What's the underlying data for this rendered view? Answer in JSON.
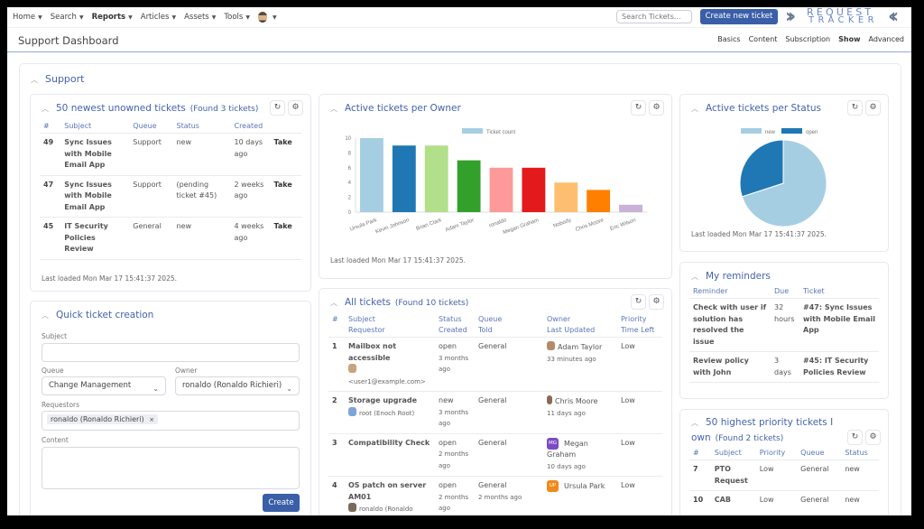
{
  "nav": {
    "menu": [
      {
        "label": "Home",
        "bold": false
      },
      {
        "label": "Search",
        "bold": false
      },
      {
        "label": "Reports",
        "bold": true
      },
      {
        "label": "Articles",
        "bold": false
      },
      {
        "label": "Assets",
        "bold": false
      },
      {
        "label": "Tools",
        "bold": false
      }
    ],
    "search_placeholder": "Search Tickets...",
    "create_button": "Create new ticket",
    "logo_line1": "REQUEST",
    "logo_line2": "TRACKER"
  },
  "page": {
    "title": "Support Dashboard",
    "submenu": [
      "Basics",
      "Content",
      "Subscription",
      "Show",
      "Advanced"
    ]
  },
  "dashboard": {
    "title": "Support"
  },
  "unowned": {
    "title": "50 newest unowned tickets",
    "found": "(Found 3 tickets)",
    "headers": [
      "#",
      "Subject",
      "Queue",
      "Status",
      "Created",
      ""
    ],
    "rows": [
      {
        "id": "49",
        "subject": "Sync Issues with Mobile Email App",
        "queue": "Support",
        "status": "new",
        "created": "10 days ago",
        "action": "Take"
      },
      {
        "id": "47",
        "subject": "Sync Issues with Mobile Email App",
        "queue": "Support",
        "status": "(pending ticket #45)",
        "created": "2 weeks ago",
        "action": "Take"
      },
      {
        "id": "45",
        "subject": "IT Security Policies Review",
        "queue": "General",
        "status": "new",
        "created": "4 weeks ago",
        "action": "Take"
      }
    ],
    "last_loaded": "Last loaded Mon Mar 17 15:41:37 2025."
  },
  "quick": {
    "title": "Quick ticket creation",
    "subject_label": "Subject",
    "subject_value": "",
    "queue_label": "Queue",
    "queue_value": "Change Management",
    "owner_label": "Owner",
    "owner_value": "ronaldo (Ronaldo Richieri)",
    "requestors_label": "Requestors",
    "requestor_tag": "ronaldo (Ronaldo Richieri)",
    "content_label": "Content",
    "content_value": "",
    "create_label": "Create"
  },
  "owner_chart": {
    "title": "Active tickets per Owner",
    "last_loaded": "Last loaded Mon Mar 17 15:41:37 2025."
  },
  "status_chart": {
    "title": "Active tickets per Status",
    "last_loaded": "Last loaded Mon Mar 17 15:41:37 2025."
  },
  "chart_data": [
    {
      "type": "bar",
      "title": "Active tickets per Owner",
      "legend": [
        "Ticket count"
      ],
      "legend_position": "top",
      "categories": [
        "Ursula Park",
        "Kevin Johnson",
        "Brian Clark",
        "Adam Taylor",
        "ronaldo",
        "Megan Graham",
        "Nobody",
        "Chris Moore",
        "Eric Wilson"
      ],
      "values": [
        10,
        9,
        9,
        7,
        6,
        6,
        4,
        3,
        1
      ],
      "colors": [
        "#a6cee3",
        "#1f78b4",
        "#b2df8a",
        "#33a02c",
        "#fb9a99",
        "#e31a1c",
        "#fdbf6f",
        "#ff7f00",
        "#cab2d6"
      ],
      "yticks": [
        0,
        2,
        4,
        6,
        8,
        10
      ],
      "ylim": [
        0,
        10
      ],
      "xlabel": "",
      "ylabel": ""
    },
    {
      "type": "pie",
      "title": "Active tickets per Status",
      "legend": [
        "new",
        "open"
      ],
      "legend_position": "top",
      "categories": [
        "new",
        "open"
      ],
      "values": [
        70,
        30
      ],
      "colors": [
        "#a6cee3",
        "#1f78b4"
      ]
    }
  ],
  "all_tickets": {
    "title": "All tickets",
    "found": "(Found 10 tickets)",
    "headers_top": [
      "#",
      "Subject",
      "Status",
      "Queue",
      "Owner",
      "Priority"
    ],
    "headers_bottom": [
      "",
      "Requestor",
      "Created",
      "Told",
      "Last Updated",
      "Time Left"
    ],
    "rows": [
      {
        "id": "1",
        "subject": "Mailbox not accessible",
        "requestor": "<user1@example.com>",
        "status": "open",
        "created": "3 months ago",
        "queue": "General",
        "told": "",
        "owner": "Adam Taylor",
        "updated": "33 minutes ago",
        "priority": "Low"
      },
      {
        "id": "2",
        "subject": "Storage upgrade",
        "requestor": "root (Enoch Root)",
        "status": "new",
        "created": "3 months ago",
        "queue": "General",
        "told": "",
        "owner": "Chris Moore",
        "updated": "11 days ago",
        "priority": "Low"
      },
      {
        "id": "3",
        "subject": "Compatibility Check",
        "requestor": "",
        "status": "open",
        "created": "2 months ago",
        "queue": "General",
        "told": "",
        "owner": "Megan Graham",
        "owner_initials": "MG",
        "updated": "10 days ago",
        "priority": "Low"
      },
      {
        "id": "4",
        "subject": "OS patch on server AM01",
        "requestor": "ronaldo (Ronaldo",
        "status": "open",
        "created": "2 months ago",
        "queue": "General",
        "told": "2 months ago",
        "owner": "Ursula Park",
        "owner_initials": "UP",
        "updated": "",
        "priority": "Low"
      }
    ]
  },
  "reminders": {
    "title": "My reminders",
    "headers": [
      "Reminder",
      "Due",
      "Ticket"
    ],
    "rows": [
      {
        "reminder": "Check with user if solution has resolved the issue",
        "due": "32 hours",
        "ticket": "#47: Sync Issues with Mobile Email App"
      },
      {
        "reminder": "Review policy with John",
        "due": "3 days",
        "ticket": "#45: IT Security Policies Review"
      }
    ]
  },
  "priority": {
    "title": "50 highest priority tickets I own",
    "found": "(Found 2 tickets)",
    "headers": [
      "#",
      "Subject",
      "Priority",
      "Queue",
      "Status"
    ],
    "rows": [
      {
        "id": "7",
        "subject": "PTO Request",
        "priority": "Low",
        "queue": "General",
        "status": "new"
      },
      {
        "id": "10",
        "subject": "CAB",
        "priority": "Low",
        "queue": "General",
        "status": "new"
      }
    ]
  }
}
